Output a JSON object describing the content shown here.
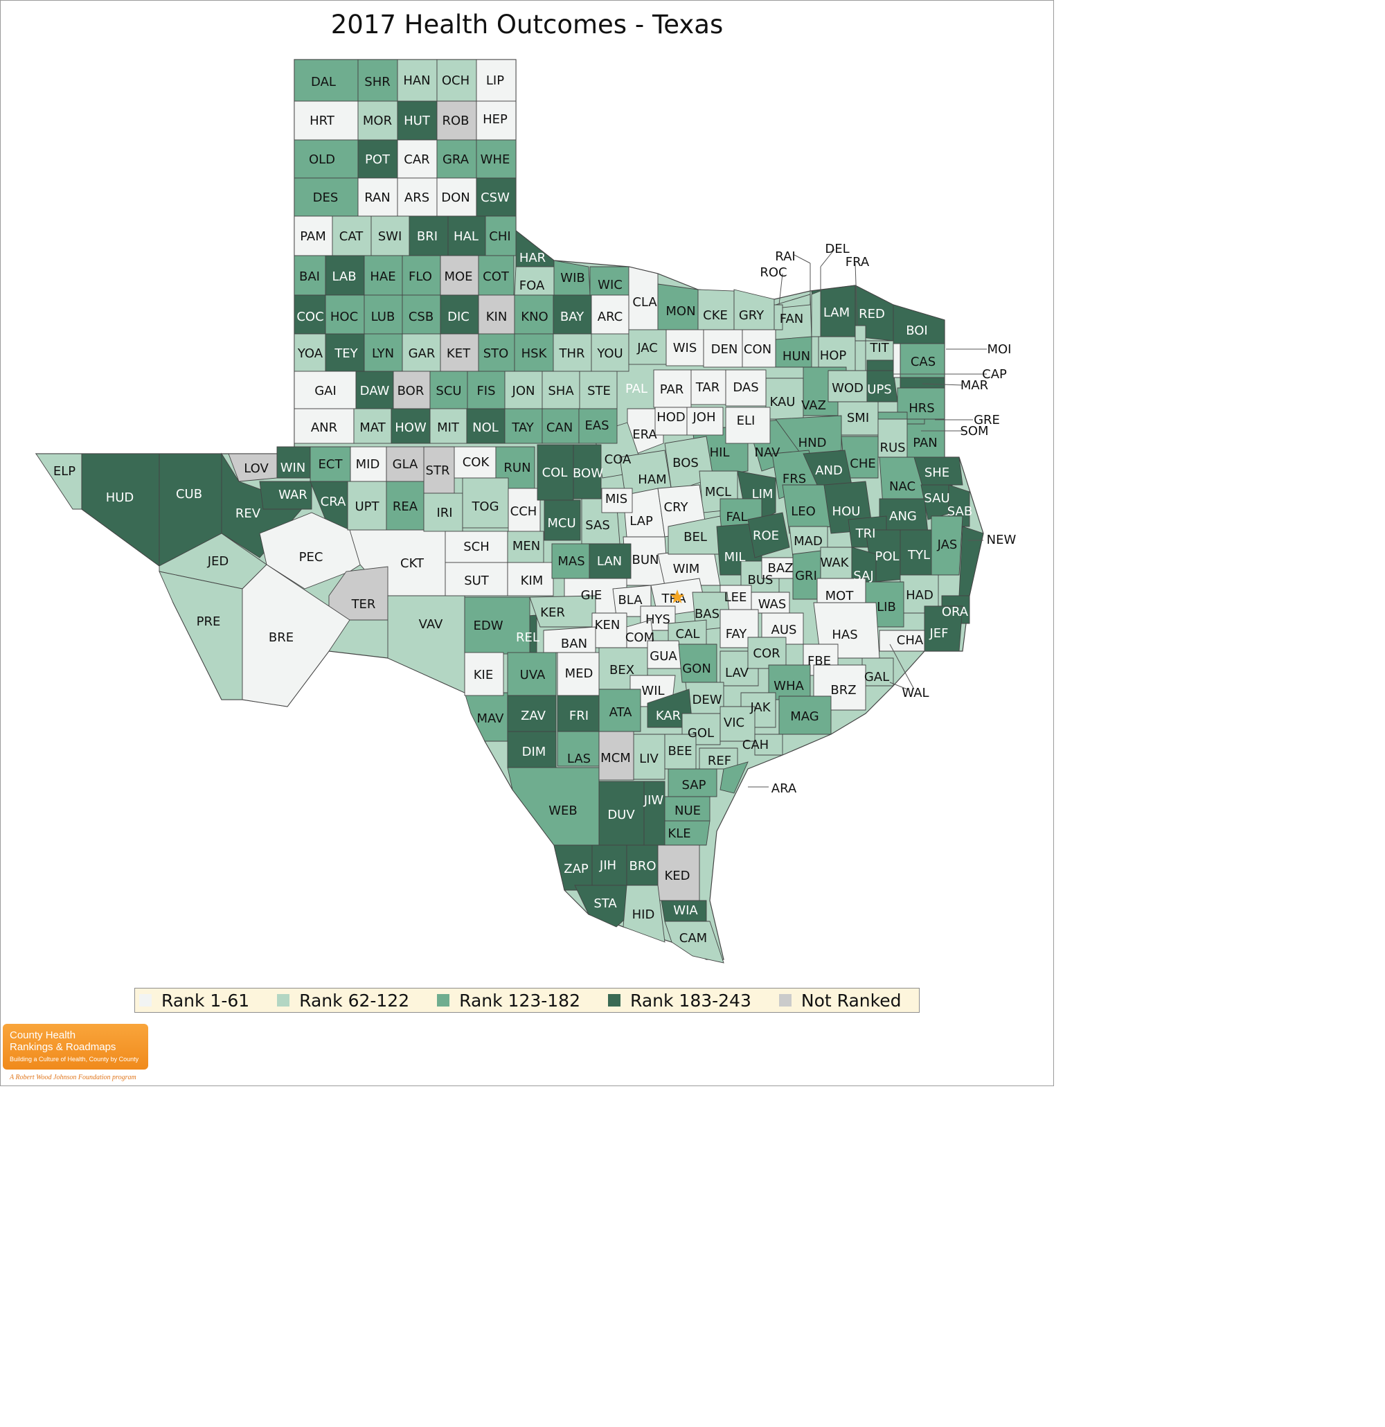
{
  "title": "2017 Health Outcomes - Texas",
  "colors": {
    "rank_1_61": "#f2f4f3",
    "rank_62_122": "#b3d6c3",
    "rank_123_182": "#6fad8f",
    "rank_183_243": "#3a6a54",
    "not_ranked": "#cbcbcb",
    "border": "#444444",
    "legend_bg": "#fdf5dc",
    "logo_orange": "#f08a1c",
    "star": "#f5a623"
  },
  "legend": [
    {
      "label": "Rank 1-61",
      "cls": "c1"
    },
    {
      "label": "Rank 62-122",
      "cls": "c2"
    },
    {
      "label": "Rank 123-182",
      "cls": "c3"
    },
    {
      "label": "Rank 183-243",
      "cls": "c4"
    },
    {
      "label": "Not Ranked",
      "cls": "nr"
    }
  ],
  "logo": {
    "line1": "County Health",
    "line2": "Rankings & Roadmaps",
    "tagline": "Building a Culture of Health, County by County",
    "foundation": "A Robert Wood Johnson Foundation program"
  },
  "capital_marker": "star-icon",
  "counties": [
    {
      "code": "DAL",
      "cls": "c3"
    },
    {
      "code": "SHR",
      "cls": "c3"
    },
    {
      "code": "HAN",
      "cls": "c2"
    },
    {
      "code": "OCH",
      "cls": "c2"
    },
    {
      "code": "LIP",
      "cls": "c1"
    },
    {
      "code": "HRT",
      "cls": "c1"
    },
    {
      "code": "MOR",
      "cls": "c2"
    },
    {
      "code": "HUT",
      "cls": "c4"
    },
    {
      "code": "ROB",
      "cls": "nr"
    },
    {
      "code": "HEP",
      "cls": "c1"
    },
    {
      "code": "OLD",
      "cls": "c3"
    },
    {
      "code": "POT",
      "cls": "c4"
    },
    {
      "code": "CAR",
      "cls": "c1"
    },
    {
      "code": "GRA",
      "cls": "c3"
    },
    {
      "code": "WHE",
      "cls": "c3"
    },
    {
      "code": "DES",
      "cls": "c3"
    },
    {
      "code": "RAN",
      "cls": "c1"
    },
    {
      "code": "ARS",
      "cls": "c1"
    },
    {
      "code": "DON",
      "cls": "c1"
    },
    {
      "code": "CSW",
      "cls": "c4"
    },
    {
      "code": "PAM",
      "cls": "c1"
    },
    {
      "code": "CAT",
      "cls": "c2"
    },
    {
      "code": "SWI",
      "cls": "c2"
    },
    {
      "code": "BRI",
      "cls": "c4"
    },
    {
      "code": "HAL",
      "cls": "c4"
    },
    {
      "code": "CHI",
      "cls": "c3"
    },
    {
      "code": "HAR",
      "cls": "c4"
    },
    {
      "code": "BAI",
      "cls": "c3"
    },
    {
      "code": "LAB",
      "cls": "c4"
    },
    {
      "code": "HAE",
      "cls": "c3"
    },
    {
      "code": "FLO",
      "cls": "c3"
    },
    {
      "code": "MOE",
      "cls": "nr"
    },
    {
      "code": "COT",
      "cls": "c3"
    },
    {
      "code": "FOA",
      "cls": "c2"
    },
    {
      "code": "WIB",
      "cls": "c3"
    },
    {
      "code": "WIC",
      "cls": "c3"
    },
    {
      "code": "COC",
      "cls": "c4"
    },
    {
      "code": "HOC",
      "cls": "c3"
    },
    {
      "code": "LUB",
      "cls": "c3"
    },
    {
      "code": "CSB",
      "cls": "c3"
    },
    {
      "code": "DIC",
      "cls": "c4"
    },
    {
      "code": "KIN",
      "cls": "nr"
    },
    {
      "code": "KNO",
      "cls": "c3"
    },
    {
      "code": "BAY",
      "cls": "c4"
    },
    {
      "code": "ARC",
      "cls": "c1"
    },
    {
      "code": "YOA",
      "cls": "c2"
    },
    {
      "code": "TEY",
      "cls": "c4"
    },
    {
      "code": "LYN",
      "cls": "c3"
    },
    {
      "code": "GAR",
      "cls": "c2"
    },
    {
      "code": "KET",
      "cls": "nr"
    },
    {
      "code": "STO",
      "cls": "c3"
    },
    {
      "code": "HSK",
      "cls": "c3"
    },
    {
      "code": "THR",
      "cls": "c2"
    },
    {
      "code": "YOU",
      "cls": "c2"
    },
    {
      "code": "CLA",
      "cls": "c1"
    },
    {
      "code": "MON",
      "cls": "c3"
    },
    {
      "code": "CKE",
      "cls": "c2"
    },
    {
      "code": "GRY",
      "cls": "c2"
    },
    {
      "code": "FAN",
      "cls": "c2"
    },
    {
      "code": "LAM",
      "cls": "c4"
    },
    {
      "code": "RED",
      "cls": "c4"
    },
    {
      "code": "BOI",
      "cls": "c4"
    },
    {
      "code": "JAC",
      "cls": "c2"
    },
    {
      "code": "WIS",
      "cls": "c1"
    },
    {
      "code": "DEN",
      "cls": "c1"
    },
    {
      "code": "CON",
      "cls": "c1"
    },
    {
      "code": "HUN",
      "cls": "c3"
    },
    {
      "code": "HOP",
      "cls": "c2"
    },
    {
      "code": "TIT",
      "cls": "c2"
    },
    {
      "code": "CAS",
      "cls": "c3"
    },
    {
      "code": "GAI",
      "cls": "c1"
    },
    {
      "code": "DAW",
      "cls": "c4"
    },
    {
      "code": "BOR",
      "cls": "nr"
    },
    {
      "code": "SCU",
      "cls": "c3"
    },
    {
      "code": "FIS",
      "cls": "c3"
    },
    {
      "code": "JON",
      "cls": "c2"
    },
    {
      "code": "SHA",
      "cls": "c2"
    },
    {
      "code": "STE",
      "cls": "c2"
    },
    {
      "code": "PAL",
      "cls": "c4"
    },
    {
      "code": "PAR",
      "cls": "c1"
    },
    {
      "code": "TAR",
      "cls": "c1"
    },
    {
      "code": "DAS",
      "cls": "c1"
    },
    {
      "code": "KAU",
      "cls": "c2"
    },
    {
      "code": "VAZ",
      "cls": "c3"
    },
    {
      "code": "WOD",
      "cls": "c2"
    },
    {
      "code": "UPS",
      "cls": "c4"
    },
    {
      "code": "MAR",
      "cls": "c4"
    },
    {
      "code": "HRS",
      "cls": "c3"
    },
    {
      "code": "ANR",
      "cls": "c1"
    },
    {
      "code": "MAT",
      "cls": "c2"
    },
    {
      "code": "HOW",
      "cls": "c4"
    },
    {
      "code": "MIT",
      "cls": "c2"
    },
    {
      "code": "NOL",
      "cls": "c4"
    },
    {
      "code": "TAY",
      "cls": "c3"
    },
    {
      "code": "CAN",
      "cls": "c3"
    },
    {
      "code": "EAS",
      "cls": "c3"
    },
    {
      "code": "ERA",
      "cls": "c1"
    },
    {
      "code": "HOD",
      "cls": "c1"
    },
    {
      "code": "JOH",
      "cls": "c1"
    },
    {
      "code": "ELI",
      "cls": "c1"
    },
    {
      "code": "SMI",
      "cls": "c2"
    },
    {
      "code": "RUS",
      "cls": "c2"
    },
    {
      "code": "PAN",
      "cls": "c3"
    },
    {
      "code": "ELP",
      "cls": "c2"
    },
    {
      "code": "HUD",
      "cls": "c4"
    },
    {
      "code": "CUB",
      "cls": "c4"
    },
    {
      "code": "LOV",
      "cls": "nr"
    },
    {
      "code": "WIN",
      "cls": "c4"
    },
    {
      "code": "ECT",
      "cls": "c3"
    },
    {
      "code": "MID",
      "cls": "c1"
    },
    {
      "code": "GLA",
      "cls": "nr"
    },
    {
      "code": "STR",
      "cls": "nr"
    },
    {
      "code": "COK",
      "cls": "c1"
    },
    {
      "code": "RUN",
      "cls": "c3"
    },
    {
      "code": "COL",
      "cls": "c4"
    },
    {
      "code": "BOW",
      "cls": "c4"
    },
    {
      "code": "COA",
      "cls": "c2"
    },
    {
      "code": "HIL",
      "cls": "c3"
    },
    {
      "code": "NAV",
      "cls": "c3"
    },
    {
      "code": "HND",
      "cls": "c3"
    },
    {
      "code": "CHE",
      "cls": "c3"
    },
    {
      "code": "SHE",
      "cls": "c4"
    },
    {
      "code": "REV",
      "cls": "c4"
    },
    {
      "code": "WAR",
      "cls": "c4"
    },
    {
      "code": "CRA",
      "cls": "c4"
    },
    {
      "code": "UPT",
      "cls": "c2"
    },
    {
      "code": "REA",
      "cls": "c3"
    },
    {
      "code": "IRI",
      "cls": "c2"
    },
    {
      "code": "TOG",
      "cls": "c2"
    },
    {
      "code": "CCH",
      "cls": "c1"
    },
    {
      "code": "HAM",
      "cls": "c2"
    },
    {
      "code": "BOS",
      "cls": "c2"
    },
    {
      "code": "MIS",
      "cls": "c1"
    },
    {
      "code": "MCL",
      "cls": "c2"
    },
    {
      "code": "LIM",
      "cls": "c4"
    },
    {
      "code": "FRS",
      "cls": "c3"
    },
    {
      "code": "AND",
      "cls": "c4"
    },
    {
      "code": "NAC",
      "cls": "c3"
    },
    {
      "code": "SAU",
      "cls": "c4"
    },
    {
      "code": "SAB",
      "cls": "c4"
    },
    {
      "code": "MCU",
      "cls": "c4"
    },
    {
      "code": "SAS",
      "cls": "c2"
    },
    {
      "code": "LAP",
      "cls": "c1"
    },
    {
      "code": "CRY",
      "cls": "c1"
    },
    {
      "code": "FAL",
      "cls": "c3"
    },
    {
      "code": "LEO",
      "cls": "c3"
    },
    {
      "code": "HOU",
      "cls": "c4"
    },
    {
      "code": "ANG",
      "cls": "c4"
    },
    {
      "code": "JED",
      "cls": "c2"
    },
    {
      "code": "PEC",
      "cls": "c1"
    },
    {
      "code": "CKT",
      "cls": "c1"
    },
    {
      "code": "SCH",
      "cls": "c1"
    },
    {
      "code": "MEN",
      "cls": "c2"
    },
    {
      "code": "MAS",
      "cls": "c3"
    },
    {
      "code": "LAN",
      "cls": "c4"
    },
    {
      "code": "BUN",
      "cls": "c1"
    },
    {
      "code": "WIM",
      "cls": "c1"
    },
    {
      "code": "BEL",
      "cls": "c2"
    },
    {
      "code": "MIL",
      "cls": "c4"
    },
    {
      "code": "ROE",
      "cls": "c4"
    },
    {
      "code": "MAD",
      "cls": "c2"
    },
    {
      "code": "TRI",
      "cls": "c4"
    },
    {
      "code": "POL",
      "cls": "c4"
    },
    {
      "code": "TYL",
      "cls": "c4"
    },
    {
      "code": "JAS",
      "cls": "c3"
    },
    {
      "code": "NEW",
      "cls": "c4"
    },
    {
      "code": "SUT",
      "cls": "c1"
    },
    {
      "code": "KIM",
      "cls": "c1"
    },
    {
      "code": "GIE",
      "cls": "c1"
    },
    {
      "code": "BUS",
      "cls": "c2"
    },
    {
      "code": "BAZ",
      "cls": "c1"
    },
    {
      "code": "GRI",
      "cls": "c3"
    },
    {
      "code": "WAK",
      "cls": "c2"
    },
    {
      "code": "SAJ",
      "cls": "c4"
    },
    {
      "code": "TER",
      "cls": "nr"
    },
    {
      "code": "VAV",
      "cls": "c2"
    },
    {
      "code": "EDW",
      "cls": "c3"
    },
    {
      "code": "REL",
      "cls": "c4"
    },
    {
      "code": "KER",
      "cls": "c2"
    },
    {
      "code": "BLA",
      "cls": "c1"
    },
    {
      "code": "TRA",
      "cls": "c1"
    },
    {
      "code": "HYS",
      "cls": "c1"
    },
    {
      "code": "LEE",
      "cls": "c1"
    },
    {
      "code": "WAS",
      "cls": "c1"
    },
    {
      "code": "MOT",
      "cls": "c1"
    },
    {
      "code": "HAD",
      "cls": "c2"
    },
    {
      "code": "LIB",
      "cls": "c3"
    },
    {
      "code": "ORA",
      "cls": "c4"
    },
    {
      "code": "JEF",
      "cls": "c4"
    },
    {
      "code": "PRE",
      "cls": "c2"
    },
    {
      "code": "BRE",
      "cls": "c1"
    },
    {
      "code": "KEN",
      "cls": "c1"
    },
    {
      "code": "BAN",
      "cls": "c1"
    },
    {
      "code": "COM",
      "cls": "c1"
    },
    {
      "code": "BAS",
      "cls": "c2"
    },
    {
      "code": "CAL",
      "cls": "c2"
    },
    {
      "code": "FAY",
      "cls": "c1"
    },
    {
      "code": "AUS",
      "cls": "c1"
    },
    {
      "code": "HAS",
      "cls": "c1"
    },
    {
      "code": "CHA",
      "cls": "c1"
    },
    {
      "code": "KIE",
      "cls": "c1"
    },
    {
      "code": "UVA",
      "cls": "c3"
    },
    {
      "code": "MED",
      "cls": "c1"
    },
    {
      "code": "BEX",
      "cls": "c2"
    },
    {
      "code": "GUA",
      "cls": "c1"
    },
    {
      "code": "GON",
      "cls": "c3"
    },
    {
      "code": "LAV",
      "cls": "c2"
    },
    {
      "code": "COR",
      "cls": "c2"
    },
    {
      "code": "FBE",
      "cls": "c1"
    },
    {
      "code": "GAL",
      "cls": "c2"
    },
    {
      "code": "WIL",
      "cls": "c1"
    },
    {
      "code": "DEW",
      "cls": "c2"
    },
    {
      "code": "WHA",
      "cls": "c3"
    },
    {
      "code": "BRZ",
      "cls": "c1"
    },
    {
      "code": "WAL",
      "cls": "c1"
    },
    {
      "code": "MAV",
      "cls": "c3"
    },
    {
      "code": "ZAV",
      "cls": "c4"
    },
    {
      "code": "FRI",
      "cls": "c4"
    },
    {
      "code": "ATA",
      "cls": "c3"
    },
    {
      "code": "KAR",
      "cls": "c4"
    },
    {
      "code": "JAK",
      "cls": "c2"
    },
    {
      "code": "MAG",
      "cls": "c3"
    },
    {
      "code": "GOL",
      "cls": "c2"
    },
    {
      "code": "VIC",
      "cls": "c2"
    },
    {
      "code": "DIM",
      "cls": "c4"
    },
    {
      "code": "LAS",
      "cls": "c3"
    },
    {
      "code": "MCM",
      "cls": "nr"
    },
    {
      "code": "LIV",
      "cls": "c2"
    },
    {
      "code": "BEE",
      "cls": "c2"
    },
    {
      "code": "CAH",
      "cls": "c2"
    },
    {
      "code": "REF",
      "cls": "c2"
    },
    {
      "code": "ARA",
      "cls": "c3"
    },
    {
      "code": "WEB",
      "cls": "c3"
    },
    {
      "code": "DUV",
      "cls": "c4"
    },
    {
      "code": "JIW",
      "cls": "c4"
    },
    {
      "code": "SAP",
      "cls": "c3"
    },
    {
      "code": "NUE",
      "cls": "c3"
    },
    {
      "code": "KLE",
      "cls": "c3"
    },
    {
      "code": "ZAP",
      "cls": "c4"
    },
    {
      "code": "JIH",
      "cls": "c4"
    },
    {
      "code": "BRO",
      "cls": "c4"
    },
    {
      "code": "KED",
      "cls": "nr"
    },
    {
      "code": "STA",
      "cls": "c4"
    },
    {
      "code": "HID",
      "cls": "c2"
    },
    {
      "code": "WIA",
      "cls": "c4"
    },
    {
      "code": "CAM",
      "cls": "c2"
    },
    {
      "code": "RAI",
      "cls": "c2"
    },
    {
      "code": "DEL",
      "cls": "c2"
    },
    {
      "code": "FRA",
      "cls": "c2"
    },
    {
      "code": "ROC",
      "cls": "c2"
    },
    {
      "code": "MOI",
      "cls": "c1"
    },
    {
      "code": "CAP",
      "cls": "c4"
    },
    {
      "code": "GRE",
      "cls": "c3"
    },
    {
      "code": "SOM",
      "cls": "c3"
    }
  ]
}
